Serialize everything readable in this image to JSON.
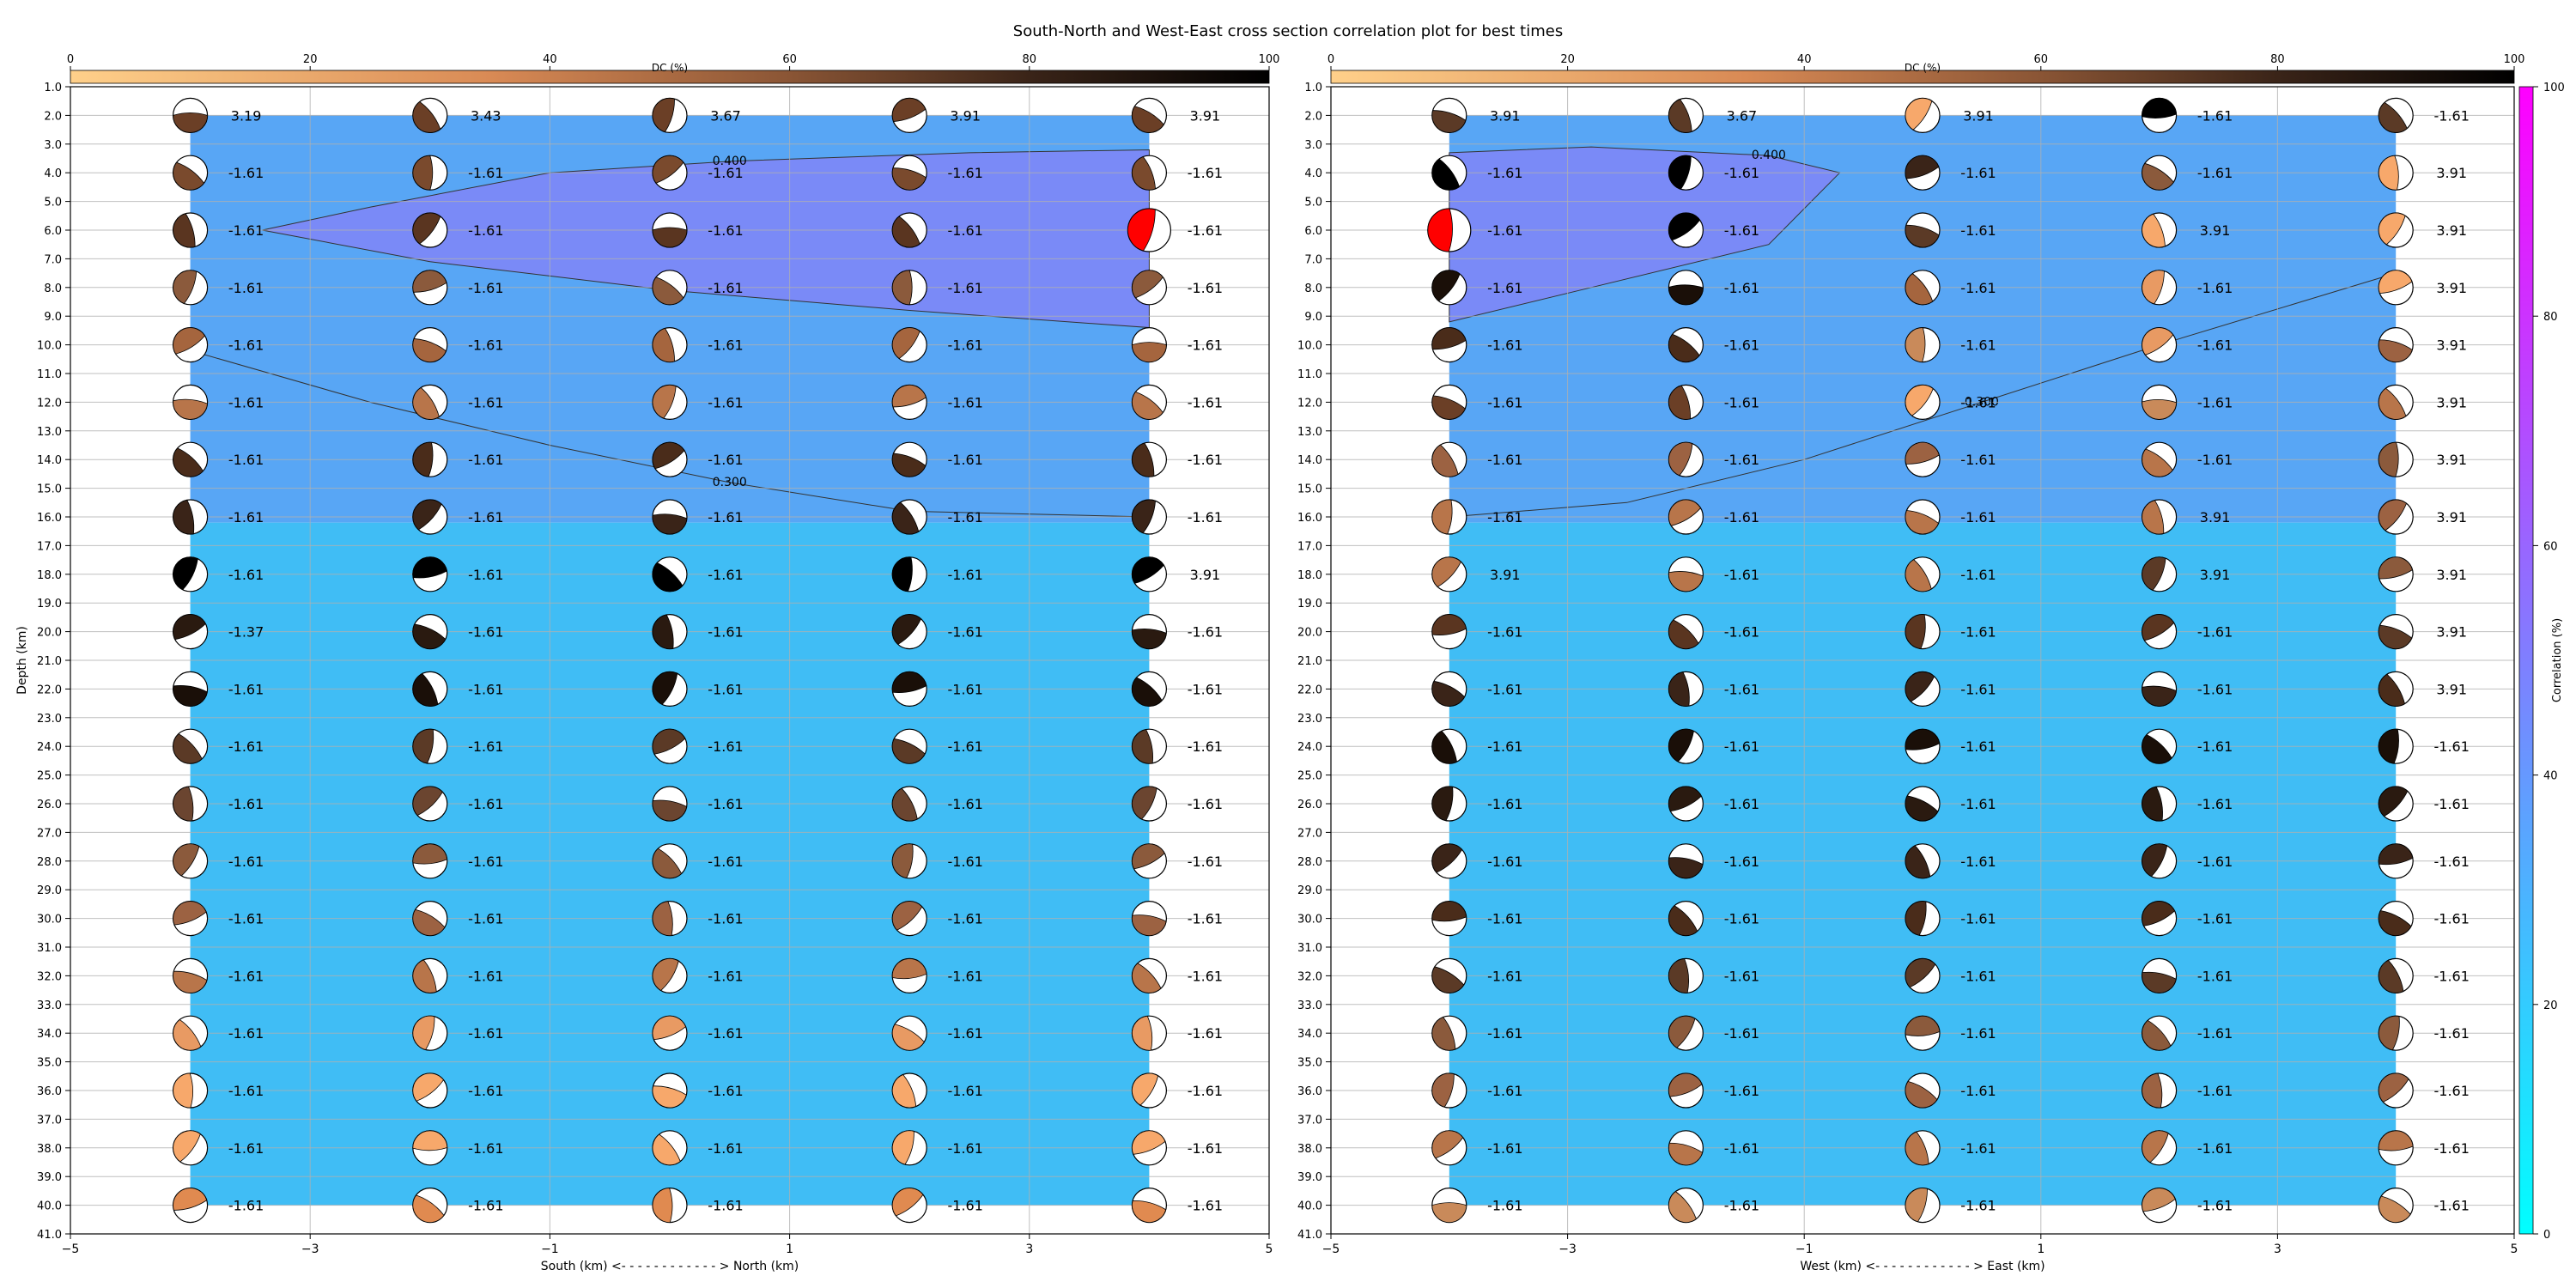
{
  "title": "South-North and West-East cross section correlation plot for best times",
  "colors": {
    "corr_low": "#00ffff",
    "corr_high": "#ff00ff",
    "dc_low": "#ffcc88",
    "dc_mid": "#a05a2c",
    "dc_high": "#000000",
    "highlight": "#ff0000"
  },
  "dc_colorbar": {
    "label": "DC (%)",
    "ticks": [
      "0",
      "20",
      "40",
      "60",
      "80",
      "100"
    ]
  },
  "corr_colorbar": {
    "label": "Correlation (%)",
    "ticks": [
      "0",
      "20",
      "40",
      "60",
      "80",
      "100"
    ]
  },
  "y_axis": {
    "label": "Depth (km)",
    "range": [
      1,
      41
    ],
    "ticks": [
      "1.0",
      "2.0",
      "3.0",
      "4.0",
      "5.0",
      "6.0",
      "7.0",
      "8.0",
      "9.0",
      "10.0",
      "11.0",
      "12.0",
      "13.0",
      "14.0",
      "15.0",
      "16.0",
      "17.0",
      "18.0",
      "19.0",
      "20.0",
      "21.0",
      "22.0",
      "23.0",
      "24.0",
      "25.0",
      "26.0",
      "27.0",
      "28.0",
      "29.0",
      "30.0",
      "31.0",
      "32.0",
      "33.0",
      "34.0",
      "35.0",
      "36.0",
      "37.0",
      "38.0",
      "39.0",
      "40.0",
      "41.0"
    ]
  },
  "chart_data": [
    {
      "type": "heatmap",
      "panel": "south-north",
      "xlabel": "South (km) <- - - - - - - - - - - - > North (km)",
      "xlim": [
        -5,
        5
      ],
      "ylim": [
        41,
        1
      ],
      "x_ticks": [
        "−5",
        "−3",
        "−1",
        "1",
        "3",
        "5"
      ],
      "x_positions": [
        -4,
        -2,
        0,
        2,
        4
      ],
      "depths": [
        2,
        4,
        6,
        8,
        10,
        12,
        14,
        16,
        18,
        20,
        22,
        24,
        26,
        28,
        30,
        32,
        34,
        36,
        38,
        40
      ],
      "contours": [
        {
          "label": "0.400",
          "points": [
            [
              -3.4,
              6.0
            ],
            [
              -2.5,
              5.2
            ],
            [
              -1.0,
              4.0
            ],
            [
              0.5,
              3.6
            ],
            [
              2.5,
              3.3
            ],
            [
              4.0,
              3.2
            ],
            [
              4.0,
              9.4
            ],
            [
              2.0,
              8.8
            ],
            [
              0.0,
              8.1
            ],
            [
              -2.0,
              7.1
            ],
            [
              -3.4,
              6.0
            ]
          ]
        },
        {
          "label": "0.300",
          "points": [
            [
              -4.0,
              10.2
            ],
            [
              -2.5,
              12.0
            ],
            [
              -1.0,
              13.5
            ],
            [
              0.5,
              14.8
            ],
            [
              2.0,
              15.8
            ],
            [
              4.0,
              16.0
            ]
          ]
        }
      ],
      "time_shifts": [
        [
          "3.19",
          "3.43",
          "3.67",
          "3.91",
          "3.91"
        ],
        [
          "-1.61",
          "-1.61",
          "-1.61",
          "-1.61",
          "-1.61"
        ],
        [
          "-1.61",
          "-1.61",
          "-1.61",
          "-1.61",
          "-1.61"
        ],
        [
          "-1.61",
          "-1.61",
          "-1.61",
          "-1.61",
          "-1.61"
        ],
        [
          "-1.61",
          "-1.61",
          "-1.61",
          "-1.61",
          "-1.61"
        ],
        [
          "-1.61",
          "-1.61",
          "-1.61",
          "-1.61",
          "-1.61"
        ],
        [
          "-1.61",
          "-1.61",
          "-1.61",
          "-1.61",
          "-1.61"
        ],
        [
          "-1.61",
          "-1.61",
          "-1.61",
          "-1.61",
          "-1.61"
        ],
        [
          "-1.61",
          "-1.61",
          "-1.61",
          "-1.61",
          "3.91"
        ],
        [
          "-1.37",
          "-1.61",
          "-1.61",
          "-1.61",
          "-1.61"
        ],
        [
          "-1.61",
          "-1.61",
          "-1.61",
          "-1.61",
          "-1.61"
        ],
        [
          "-1.61",
          "-1.61",
          "-1.61",
          "-1.61",
          "-1.61"
        ],
        [
          "-1.61",
          "-1.61",
          "-1.61",
          "-1.61",
          "-1.61"
        ],
        [
          "-1.61",
          "-1.61",
          "-1.61",
          "-1.61",
          "-1.61"
        ],
        [
          "-1.61",
          "-1.61",
          "-1.61",
          "-1.61",
          "-1.61"
        ],
        [
          "-1.61",
          "-1.61",
          "-1.61",
          "-1.61",
          "-1.61"
        ],
        [
          "-1.61",
          "-1.61",
          "-1.61",
          "-1.61",
          "-1.61"
        ],
        [
          "-1.61",
          "-1.61",
          "-1.61",
          "-1.61",
          "-1.61"
        ],
        [
          "-1.61",
          "-1.61",
          "-1.61",
          "-1.61",
          "-1.61"
        ],
        [
          "-1.61",
          "-1.61",
          "-1.61",
          "-1.61",
          "-1.61"
        ]
      ],
      "highlight": {
        "row": 2,
        "col": 4
      },
      "notes": "Background colour = correlation; beach balls colored by DC %."
    },
    {
      "type": "heatmap",
      "panel": "west-east",
      "xlabel": "West (km) <- - - - - - - - - - - - > East (km)",
      "xlim": [
        -5,
        5
      ],
      "ylim": [
        41,
        1
      ],
      "x_ticks": [
        "−5",
        "−3",
        "−1",
        "1",
        "3",
        "5"
      ],
      "x_positions": [
        -4,
        -2,
        0,
        2,
        4
      ],
      "depths": [
        2,
        4,
        6,
        8,
        10,
        12,
        14,
        16,
        18,
        20,
        22,
        24,
        26,
        28,
        30,
        32,
        34,
        36,
        38,
        40
      ],
      "contours": [
        {
          "label": "0.400",
          "points": [
            [
              -4.0,
              3.3
            ],
            [
              -2.8,
              3.1
            ],
            [
              -1.3,
              3.4
            ],
            [
              -0.7,
              4.0
            ],
            [
              -1.3,
              6.5
            ],
            [
              -2.8,
              8.0
            ],
            [
              -4.0,
              9.2
            ],
            [
              -4.0,
              3.3
            ]
          ]
        },
        {
          "label": "0.300",
          "points": [
            [
              -4.0,
              16.0
            ],
            [
              -2.5,
              15.5
            ],
            [
              -1.0,
              14.0
            ],
            [
              0.5,
              12.0
            ],
            [
              2.0,
              10.0
            ],
            [
              3.2,
              8.5
            ],
            [
              4.0,
              7.5
            ]
          ]
        }
      ],
      "time_shifts": [
        [
          "3.91",
          "3.67",
          "3.91",
          "-1.61",
          "-1.61"
        ],
        [
          "-1.61",
          "-1.61",
          "-1.61",
          "-1.61",
          "3.91"
        ],
        [
          "-1.61",
          "-1.61",
          "-1.61",
          "3.91",
          "3.91"
        ],
        [
          "-1.61",
          "-1.61",
          "-1.61",
          "-1.61",
          "3.91"
        ],
        [
          "-1.61",
          "-1.61",
          "-1.61",
          "-1.61",
          "3.91"
        ],
        [
          "-1.61",
          "-1.61",
          "-1.61",
          "-1.61",
          "3.91"
        ],
        [
          "-1.61",
          "-1.61",
          "-1.61",
          "-1.61",
          "3.91"
        ],
        [
          "-1.61",
          "-1.61",
          "-1.61",
          "3.91",
          "3.91"
        ],
        [
          "3.91",
          "-1.61",
          "-1.61",
          "3.91",
          "3.91"
        ],
        [
          "-1.61",
          "-1.61",
          "-1.61",
          "-1.61",
          "3.91"
        ],
        [
          "-1.61",
          "-1.61",
          "-1.61",
          "-1.61",
          "3.91"
        ],
        [
          "-1.61",
          "-1.61",
          "-1.61",
          "-1.61",
          "-1.61"
        ],
        [
          "-1.61",
          "-1.61",
          "-1.61",
          "-1.61",
          "-1.61"
        ],
        [
          "-1.61",
          "-1.61",
          "-1.61",
          "-1.61",
          "-1.61"
        ],
        [
          "-1.61",
          "-1.61",
          "-1.61",
          "-1.61",
          "-1.61"
        ],
        [
          "-1.61",
          "-1.61",
          "-1.61",
          "-1.61",
          "-1.61"
        ],
        [
          "-1.61",
          "-1.61",
          "-1.61",
          "-1.61",
          "-1.61"
        ],
        [
          "-1.61",
          "-1.61",
          "-1.61",
          "-1.61",
          "-1.61"
        ],
        [
          "-1.61",
          "-1.61",
          "-1.61",
          "-1.61",
          "-1.61"
        ],
        [
          "-1.61",
          "-1.61",
          "-1.61",
          "-1.61",
          "-1.61"
        ]
      ],
      "highlight": {
        "row": 2,
        "col": 0
      },
      "notes": "Background colour = correlation; beach balls colored by DC %."
    }
  ]
}
